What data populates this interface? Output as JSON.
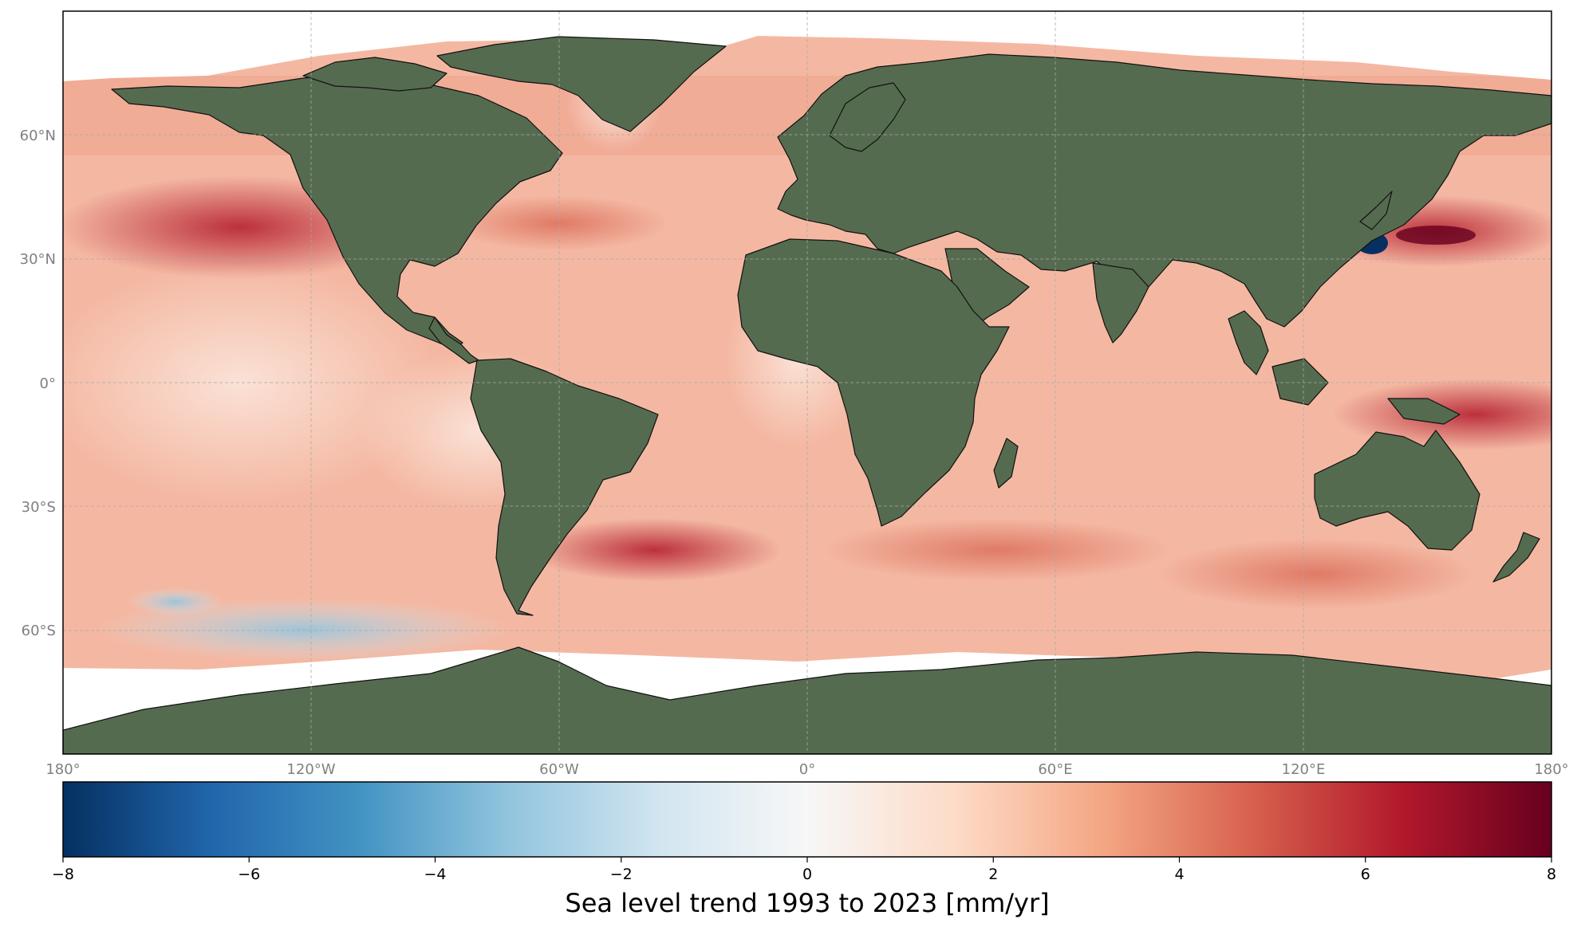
{
  "map": {
    "projection": "equirectangular (Plate Carrée)",
    "lon_range": [
      -180,
      180
    ],
    "lat_range": [
      -90,
      90
    ],
    "land_color": "#556b4f",
    "no_data_color": "#ffffff",
    "gridlines": "dashed, light gray",
    "lat_labels": [
      "60°N",
      "30°N",
      "0°",
      "30°S",
      "60°S"
    ],
    "lon_labels": [
      "180°",
      "120°W",
      "60°W",
      "0°",
      "60°E",
      "120°E",
      "180°"
    ]
  },
  "colorbar": {
    "colormap": "RdBu_r",
    "range": [
      -8,
      8
    ],
    "ticks": [
      "−8",
      "−6",
      "−4",
      "−2",
      "0",
      "2",
      "4",
      "6",
      "8"
    ],
    "stops": [
      "#053061",
      "#2166ac",
      "#4393c3",
      "#92c5de",
      "#d1e5f0",
      "#f7f7f7",
      "#fddbc7",
      "#f4a582",
      "#d6604d",
      "#b2182b",
      "#67001f"
    ],
    "label": "Sea level trend 1993 to 2023 [mm/yr]"
  }
}
